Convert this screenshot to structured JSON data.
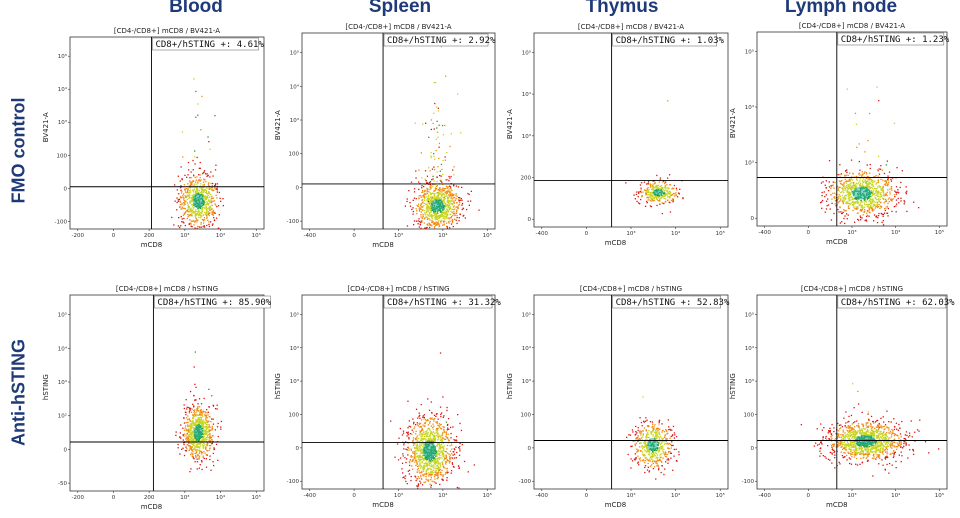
{
  "columns": [
    "Blood",
    "Spleen",
    "Thymus",
    "Lymph node"
  ],
  "rows": [
    "FMO control",
    "Anti-hSTING"
  ],
  "colors": {
    "heading": "#1f3a78",
    "axis": "#222222",
    "gate": "#000000"
  },
  "chart_data": [
    {
      "type": "scatter",
      "row": "FMO control",
      "column": "Blood",
      "title": "[CD4-/CD8+] mCD8 / BV421-A",
      "xlabel": "mCD8",
      "ylabel": "BV421-A",
      "gate_label": "CD8+/hSTING +: 4.61%",
      "x_ticks": [
        "-200",
        "0",
        "200",
        "10³",
        "10⁴",
        "10⁵"
      ],
      "y_ticks": [
        "-100",
        "0",
        "100",
        "10³",
        "10⁴",
        "10⁵"
      ]
    },
    {
      "type": "scatter",
      "row": "FMO control",
      "column": "Spleen",
      "title": "[CD4-/CD8+] mCD8 / BV421-A",
      "xlabel": "mCD8",
      "ylabel": "BV421-A",
      "gate_label": "CD8+/hSTING +: 2.92%",
      "x_ticks": [
        "-400",
        "0",
        "10³",
        "10⁴",
        "10⁵"
      ],
      "y_ticks": [
        "-100",
        "0",
        "100",
        "10³",
        "10⁴",
        "10⁵"
      ]
    },
    {
      "type": "scatter",
      "row": "FMO control",
      "column": "Thymus",
      "title": "[CD4-/CD8+] mCD8 / BV421-A",
      "xlabel": "mCD8",
      "ylabel": "BV421-A",
      "gate_label": "CD8+/hSTING +: 1.03%",
      "x_ticks": [
        "-400",
        "0",
        "10³",
        "10⁴",
        "10⁵"
      ],
      "y_ticks": [
        "0",
        "200",
        "10³",
        "10⁴",
        "10⁵"
      ]
    },
    {
      "type": "scatter",
      "row": "FMO control",
      "column": "Lymph node",
      "title": "[CD4-/CD8+] mCD8 / BV421-A",
      "xlabel": "mCD8",
      "ylabel": "BV421-A",
      "gate_label": "CD8+/hSTING +: 1.23%",
      "x_ticks": [
        "-400",
        "0",
        "10³",
        "10⁴",
        "10⁵"
      ],
      "y_ticks": [
        "0",
        "10³",
        "10⁴",
        "10⁵"
      ]
    },
    {
      "type": "scatter",
      "row": "Anti-hSTING",
      "column": "Blood",
      "title": "[CD4-/CD8+] mCD8 / hSTING",
      "xlabel": "mCD8",
      "ylabel": "hSTING",
      "gate_label": "CD8+/hSTING +: 85.90%",
      "x_ticks": [
        "-200",
        "0",
        "200",
        "10³",
        "10⁴",
        "10⁵"
      ],
      "y_ticks": [
        "-50",
        "0",
        "10²",
        "10³",
        "10⁴",
        "10⁵"
      ]
    },
    {
      "type": "scatter",
      "row": "Anti-hSTING",
      "column": "Spleen",
      "title": "[CD4-/CD8+] mCD8 / hSTING",
      "xlabel": "mCD8",
      "ylabel": "hSTING",
      "gate_label": "CD8+/hSTING +: 31.32%",
      "x_ticks": [
        "-400",
        "0",
        "10³",
        "10⁴",
        "10⁵"
      ],
      "y_ticks": [
        "-100",
        "0",
        "100",
        "10³",
        "10⁴",
        "10⁵"
      ]
    },
    {
      "type": "scatter",
      "row": "Anti-hSTING",
      "column": "Thymus",
      "title": "[CD4-/CD8+] mCD8 / hSTING",
      "xlabel": "mCD8",
      "ylabel": "hSTING",
      "gate_label": "CD8+/hSTING +: 52.83%",
      "x_ticks": [
        "-400",
        "0",
        "10³",
        "10⁴",
        "10⁵"
      ],
      "y_ticks": [
        "-100",
        "0",
        "100",
        "10³",
        "10⁴",
        "10⁵"
      ]
    },
    {
      "type": "scatter",
      "row": "Anti-hSTING",
      "column": "Lymph node",
      "title": "[CD4-/CD8+] mCD8 / hSTING",
      "xlabel": "mCD8",
      "ylabel": "hSTING",
      "gate_label": "CD8+/hSTING +: 62.03%",
      "x_ticks": [
        "-400",
        "0",
        "10³",
        "10⁴",
        "10⁵"
      ],
      "y_ticks": [
        "-100",
        "0",
        "100",
        "10³",
        "10⁴",
        "10⁵"
      ]
    }
  ]
}
